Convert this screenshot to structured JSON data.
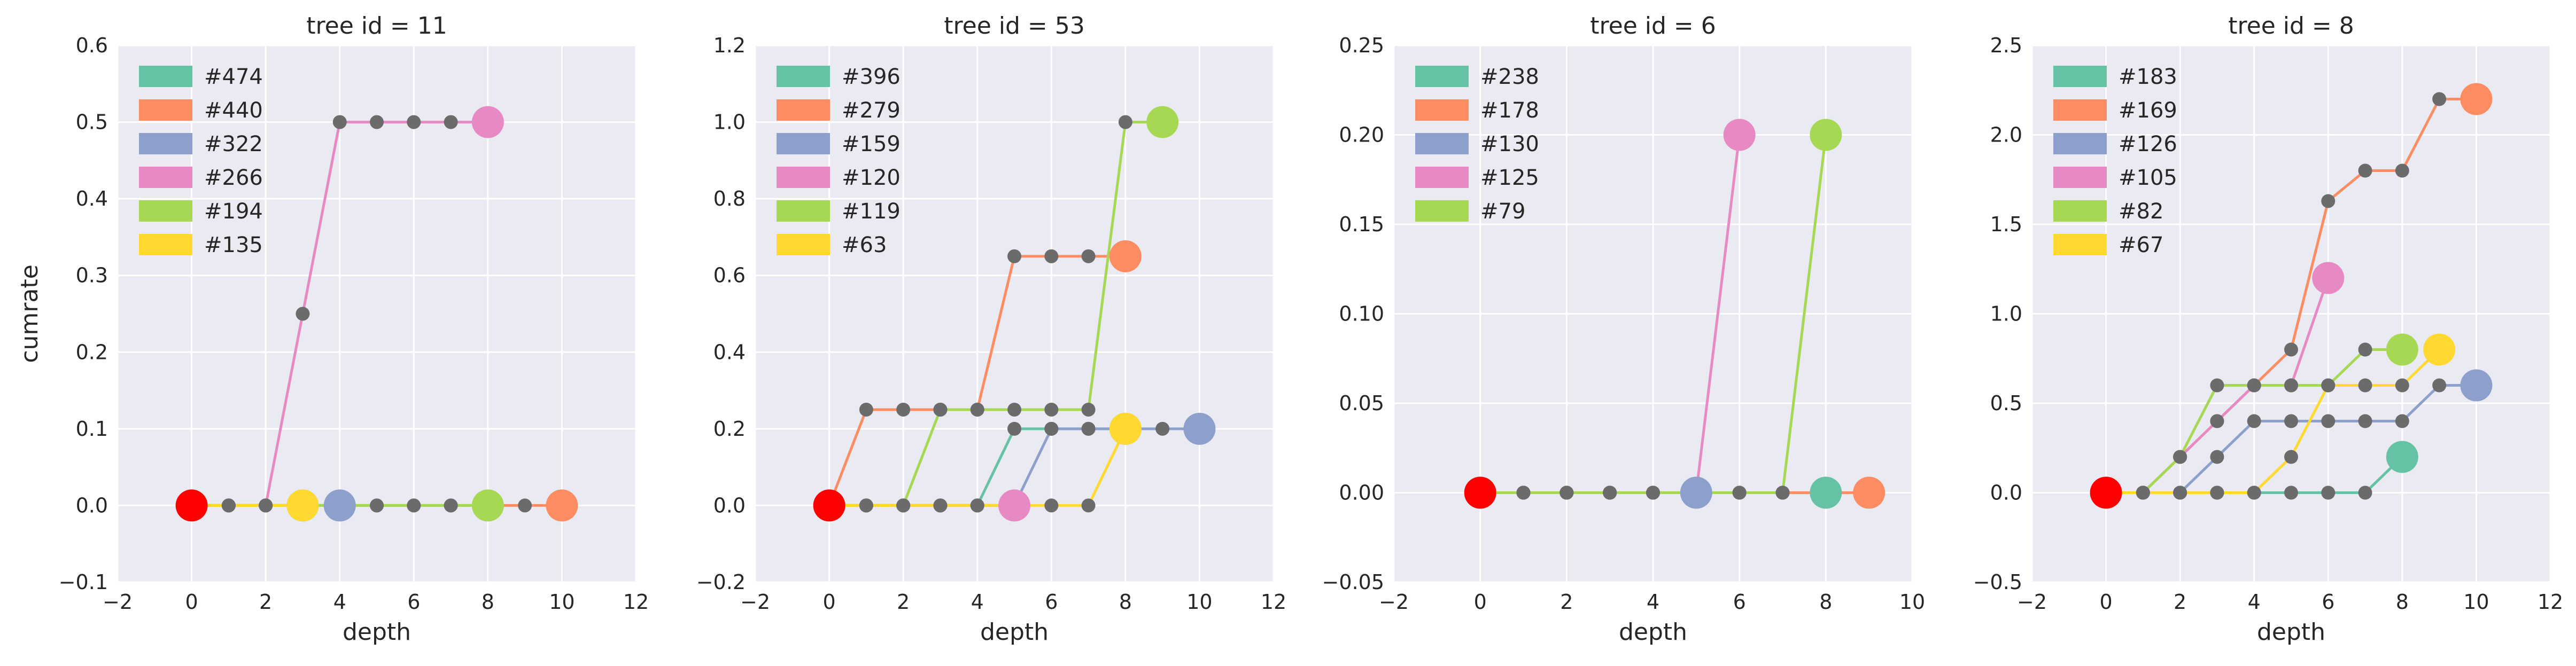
{
  "chart_data": [
    {
      "type": "line",
      "title": "tree id = 11",
      "xlabel": "depth",
      "ylabel": "cumrate",
      "xlim": [
        -2,
        12
      ],
      "ylim": [
        -0.1,
        0.6
      ],
      "xticks": [
        "−2",
        "0",
        "2",
        "4",
        "6",
        "8",
        "10",
        "12"
      ],
      "xtick_values": [
        -2,
        0,
        2,
        4,
        6,
        8,
        10,
        12
      ],
      "yticks": [
        "−0.1",
        "0.0",
        "0.1",
        "0.2",
        "0.3",
        "0.4",
        "0.5",
        "0.6"
      ],
      "ytick_values": [
        -0.1,
        0.0,
        0.1,
        0.2,
        0.3,
        0.4,
        0.5,
        0.6
      ],
      "grid": true,
      "legend_position": "top-left",
      "root": {
        "x": 0,
        "y": 0.0
      },
      "series": [
        {
          "name": "#474",
          "color": "#66c2a5",
          "x": [
            0,
            1,
            2,
            3
          ],
          "y": [
            0.0,
            0.0,
            0.0,
            0.0
          ]
        },
        {
          "name": "#440",
          "color": "#fc8d62",
          "x": [
            0,
            1,
            2,
            3,
            4,
            5,
            6,
            7,
            8,
            9,
            10
          ],
          "y": [
            0,
            0,
            0,
            0,
            0,
            0,
            0,
            0,
            0,
            0,
            0
          ]
        },
        {
          "name": "#322",
          "color": "#8da0cb",
          "x": [
            0,
            1,
            2,
            3,
            4
          ],
          "y": [
            0,
            0,
            0,
            0,
            0
          ]
        },
        {
          "name": "#266",
          "color": "#e78ac3",
          "x": [
            0,
            1,
            2,
            3,
            4,
            5,
            6,
            7,
            8
          ],
          "y": [
            0,
            0,
            0,
            0.25,
            0.5,
            0.5,
            0.5,
            0.5,
            0.5
          ]
        },
        {
          "name": "#194",
          "color": "#a6d854",
          "x": [
            0,
            1,
            2,
            3,
            4,
            5,
            6,
            7,
            8
          ],
          "y": [
            0,
            0,
            0,
            0,
            0,
            0,
            0,
            0,
            0
          ]
        },
        {
          "name": "#135",
          "color": "#ffd92f",
          "x": [
            0,
            1,
            2,
            3
          ],
          "y": [
            0,
            0,
            0,
            0
          ]
        }
      ]
    },
    {
      "type": "line",
      "title": "tree id = 53",
      "xlabel": "depth",
      "ylabel": "",
      "xlim": [
        -2,
        12
      ],
      "ylim": [
        -0.2,
        1.2
      ],
      "xticks": [
        "−2",
        "0",
        "2",
        "4",
        "6",
        "8",
        "10",
        "12"
      ],
      "xtick_values": [
        -2,
        0,
        2,
        4,
        6,
        8,
        10,
        12
      ],
      "yticks": [
        "−0.2",
        "0.0",
        "0.2",
        "0.4",
        "0.6",
        "0.8",
        "1.0",
        "1.2"
      ],
      "ytick_values": [
        -0.2,
        0.0,
        0.2,
        0.4,
        0.6,
        0.8,
        1.0,
        1.2
      ],
      "grid": true,
      "legend_position": "top-left",
      "root": {
        "x": 0,
        "y": 0.0
      },
      "series": [
        {
          "name": "#396",
          "color": "#66c2a5",
          "x": [
            0,
            1,
            2,
            3,
            4,
            5,
            6,
            7,
            8
          ],
          "y": [
            0,
            0,
            0,
            0,
            0,
            0.2,
            0.2,
            0.2,
            0.2
          ]
        },
        {
          "name": "#279",
          "color": "#fc8d62",
          "x": [
            0,
            1,
            2,
            3,
            4,
            5,
            6,
            7,
            8
          ],
          "y": [
            0,
            0.25,
            0.25,
            0.25,
            0.25,
            0.65,
            0.65,
            0.65,
            0.65
          ]
        },
        {
          "name": "#159",
          "color": "#8da0cb",
          "x": [
            0,
            1,
            2,
            3,
            4,
            5,
            6,
            7,
            8,
            9,
            10
          ],
          "y": [
            0,
            0,
            0,
            0,
            0,
            0,
            0.2,
            0.2,
            0.2,
            0.2,
            0.2
          ]
        },
        {
          "name": "#120",
          "color": "#e78ac3",
          "x": [
            0,
            1,
            2,
            3,
            4,
            5
          ],
          "y": [
            0,
            0,
            0,
            0,
            0,
            0
          ]
        },
        {
          "name": "#119",
          "color": "#a6d854",
          "x": [
            0,
            1,
            2,
            3,
            4,
            5,
            6,
            7,
            8,
            9
          ],
          "y": [
            0,
            0,
            0,
            0.25,
            0.25,
            0.25,
            0.25,
            0.25,
            1.0,
            1.0
          ]
        },
        {
          "name": "#63",
          "color": "#ffd92f",
          "x": [
            0,
            1,
            2,
            3,
            4,
            5,
            6,
            7,
            8
          ],
          "y": [
            0,
            0,
            0,
            0,
            0,
            0,
            0,
            0,
            0.2
          ]
        }
      ]
    },
    {
      "type": "line",
      "title": "tree id = 6",
      "xlabel": "depth",
      "ylabel": "",
      "xlim": [
        -2,
        10
      ],
      "ylim": [
        -0.05,
        0.25
      ],
      "xticks": [
        "−2",
        "0",
        "2",
        "4",
        "6",
        "8",
        "10"
      ],
      "xtick_values": [
        -2,
        0,
        2,
        4,
        6,
        8,
        10
      ],
      "yticks": [
        "−0.05",
        "0.00",
        "0.05",
        "0.10",
        "0.15",
        "0.20",
        "0.25"
      ],
      "ytick_values": [
        -0.05,
        0.0,
        0.05,
        0.1,
        0.15,
        0.2,
        0.25
      ],
      "grid": true,
      "legend_position": "top-left",
      "root": {
        "x": 0,
        "y": 0.0
      },
      "series": [
        {
          "name": "#238",
          "color": "#66c2a5",
          "x": [
            0,
            1,
            2,
            3,
            4,
            5,
            6,
            7,
            8
          ],
          "y": [
            0,
            0,
            0,
            0,
            0,
            0,
            0,
            0,
            0
          ]
        },
        {
          "name": "#178",
          "color": "#fc8d62",
          "x": [
            0,
            1,
            2,
            3,
            4,
            5,
            6,
            7,
            8,
            9
          ],
          "y": [
            0,
            0,
            0,
            0,
            0,
            0,
            0,
            0,
            0,
            0
          ]
        },
        {
          "name": "#130",
          "color": "#8da0cb",
          "x": [
            0,
            1,
            2,
            3,
            4,
            5
          ],
          "y": [
            0,
            0,
            0,
            0,
            0,
            0
          ]
        },
        {
          "name": "#125",
          "color": "#e78ac3",
          "x": [
            0,
            1,
            2,
            3,
            4,
            5,
            6
          ],
          "y": [
            0,
            0,
            0,
            0,
            0,
            0,
            0.2
          ]
        },
        {
          "name": "#79",
          "color": "#a6d854",
          "x": [
            0,
            1,
            2,
            3,
            4,
            5,
            6,
            7,
            8
          ],
          "y": [
            0,
            0,
            0,
            0,
            0,
            0,
            0,
            0,
            0.2
          ]
        }
      ]
    },
    {
      "type": "line",
      "title": "tree id = 8",
      "xlabel": "depth",
      "ylabel": "",
      "xlim": [
        -2,
        12
      ],
      "ylim": [
        -0.5,
        2.5
      ],
      "xticks": [
        "−2",
        "0",
        "2",
        "4",
        "6",
        "8",
        "10",
        "12"
      ],
      "xtick_values": [
        -2,
        0,
        2,
        4,
        6,
        8,
        10,
        12
      ],
      "yticks": [
        "−0.5",
        "0.0",
        "0.5",
        "1.0",
        "1.5",
        "2.0",
        "2.5"
      ],
      "ytick_values": [
        -0.5,
        0.0,
        0.5,
        1.0,
        1.5,
        2.0,
        2.5
      ],
      "grid": true,
      "legend_position": "top-left",
      "root": {
        "x": 0,
        "y": 0.0
      },
      "series": [
        {
          "name": "#183",
          "color": "#66c2a5",
          "x": [
            0,
            1,
            2,
            3,
            4,
            5,
            6,
            7,
            8
          ],
          "y": [
            0,
            0,
            0,
            0,
            0,
            0,
            0,
            0,
            0.2
          ]
        },
        {
          "name": "#169",
          "color": "#fc8d62",
          "x": [
            0,
            1,
            2,
            3,
            4,
            5,
            6,
            7,
            8,
            9,
            10
          ],
          "y": [
            0,
            0,
            0.2,
            0.4,
            0.6,
            0.8,
            1.63,
            1.8,
            1.8,
            2.2,
            2.2
          ]
        },
        {
          "name": "#126",
          "color": "#8da0cb",
          "x": [
            0,
            1,
            2,
            3,
            4,
            5,
            6,
            7,
            8,
            9,
            10
          ],
          "y": [
            0,
            0,
            0,
            0.2,
            0.4,
            0.4,
            0.4,
            0.4,
            0.4,
            0.6,
            0.6
          ]
        },
        {
          "name": "#105",
          "color": "#e78ac3",
          "x": [
            0,
            1,
            2,
            3,
            4,
            5,
            6
          ],
          "y": [
            0,
            0,
            0.2,
            0.4,
            0.6,
            0.6,
            1.2
          ]
        },
        {
          "name": "#82",
          "color": "#a6d854",
          "x": [
            0,
            1,
            2,
            3,
            4,
            5,
            6,
            7,
            8
          ],
          "y": [
            0,
            0,
            0.2,
            0.6,
            0.6,
            0.6,
            0.6,
            0.8,
            0.8
          ]
        },
        {
          "name": "#67",
          "color": "#ffd92f",
          "x": [
            0,
            1,
            2,
            3,
            4,
            5,
            6,
            7,
            8,
            9
          ],
          "y": [
            0,
            0,
            0,
            0,
            0,
            0.2,
            0.6,
            0.6,
            0.6,
            0.8
          ]
        }
      ]
    }
  ],
  "style": {
    "axes_bg": "#eaeaf2",
    "grid_color": "#ffffff",
    "intermediate_point_color": "#6b6b6b",
    "root_point_color": "#ff0000",
    "text_color": "#262626"
  }
}
